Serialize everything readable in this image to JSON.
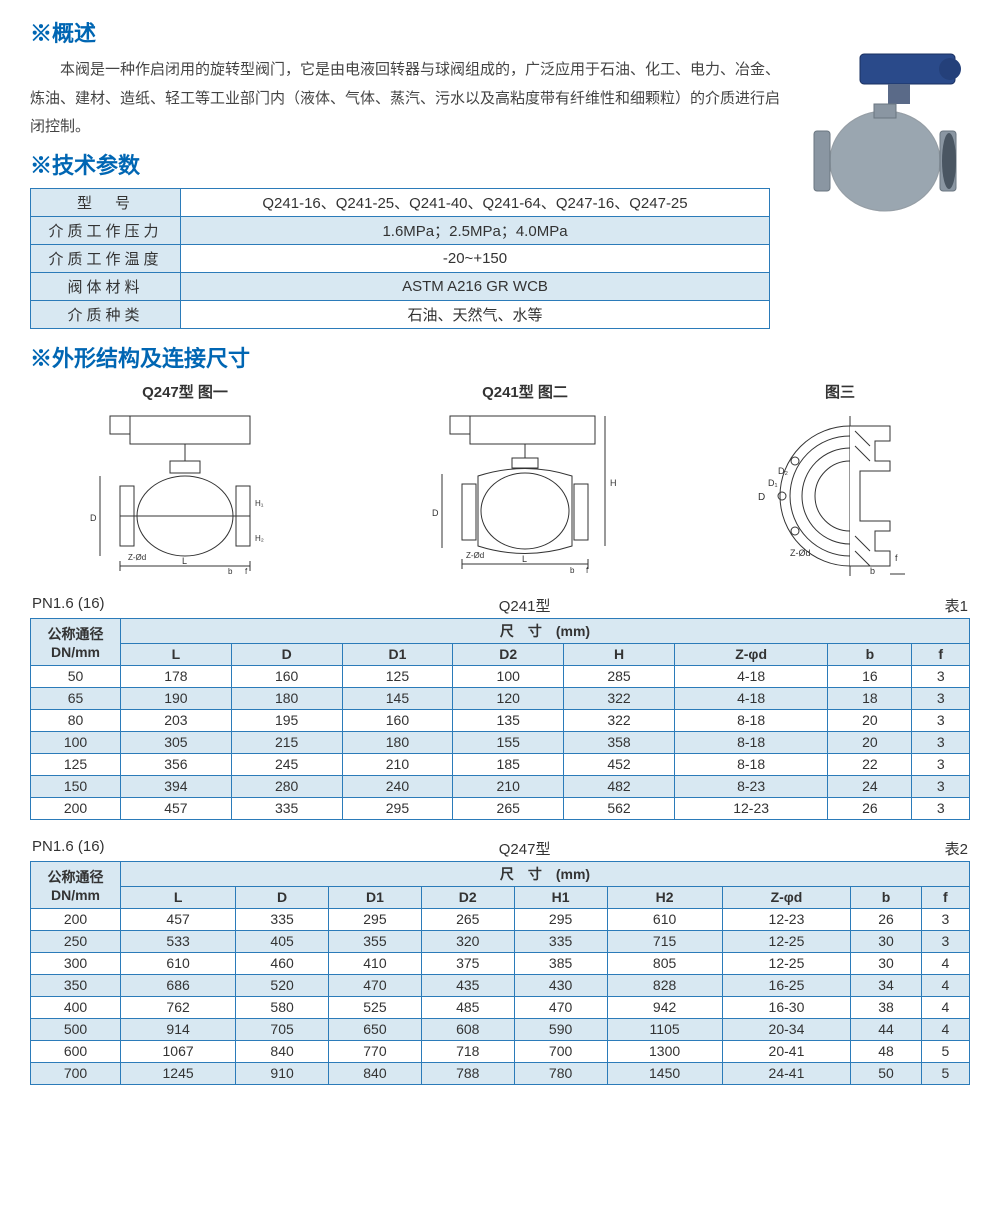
{
  "colors": {
    "heading": "#0066b3",
    "border": "#2b7bb9",
    "tint": "#d8e8f2",
    "text": "#3a3a3a"
  },
  "overview": {
    "title": "※概述",
    "body": "本阀是一种作启闭用的旋转型阀门，它是由电液回转器与球阀组成的，广泛应用于石油、化工、电力、冶金、炼油、建材、造纸、轻工等工业部门内（液体、气体、蒸汽、污水以及高粘度带有纤维性和细颗粒）的介质进行启闭控制。"
  },
  "tech": {
    "title": "※技术参数",
    "rows": [
      {
        "label": "型　号",
        "value": "Q241-16、Q241-25、Q241-40、Q241-64、Q247-16、Q247-25"
      },
      {
        "label": "介质工作压力",
        "value": "1.6MPa；2.5MPa；4.0MPa"
      },
      {
        "label": "介质工作温度",
        "value": "-20~+150"
      },
      {
        "label": "阀体材料",
        "value": "ASTM A216 GR WCB"
      },
      {
        "label": "介质种类",
        "value": "石油、天然气、水等"
      }
    ]
  },
  "dims": {
    "title": "※外形结构及连接尺寸",
    "diagrams": [
      {
        "caption": "Q247型 图一"
      },
      {
        "caption": "Q241型 图二"
      },
      {
        "caption": "图三"
      }
    ]
  },
  "table1": {
    "left": "PN1.6 (16)",
    "mid": "Q241型",
    "right": "表1",
    "dn_header": "公称通径\nDN/mm",
    "dim_header": "尺　寸　(mm)",
    "columns": [
      "L",
      "D",
      "D1",
      "D2",
      "H",
      "Z-φd",
      "b",
      "f"
    ],
    "rows": [
      [
        "50",
        "178",
        "160",
        "125",
        "100",
        "285",
        "4-18",
        "16",
        "3"
      ],
      [
        "65",
        "190",
        "180",
        "145",
        "120",
        "322",
        "4-18",
        "18",
        "3"
      ],
      [
        "80",
        "203",
        "195",
        "160",
        "135",
        "322",
        "8-18",
        "20",
        "3"
      ],
      [
        "100",
        "305",
        "215",
        "180",
        "155",
        "358",
        "8-18",
        "20",
        "3"
      ],
      [
        "125",
        "356",
        "245",
        "210",
        "185",
        "452",
        "8-18",
        "22",
        "3"
      ],
      [
        "150",
        "394",
        "280",
        "240",
        "210",
        "482",
        "8-23",
        "24",
        "3"
      ],
      [
        "200",
        "457",
        "335",
        "295",
        "265",
        "562",
        "12-23",
        "26",
        "3"
      ]
    ]
  },
  "table2": {
    "left": "PN1.6 (16)",
    "mid": "Q247型",
    "right": "表2",
    "dn_header": "公称通径\nDN/mm",
    "dim_header": "尺　寸　(mm)",
    "columns": [
      "L",
      "D",
      "D1",
      "D2",
      "H1",
      "H2",
      "Z-φd",
      "b",
      "f"
    ],
    "rows": [
      [
        "200",
        "457",
        "335",
        "295",
        "265",
        "295",
        "610",
        "12-23",
        "26",
        "3"
      ],
      [
        "250",
        "533",
        "405",
        "355",
        "320",
        "335",
        "715",
        "12-25",
        "30",
        "3"
      ],
      [
        "300",
        "610",
        "460",
        "410",
        "375",
        "385",
        "805",
        "12-25",
        "30",
        "4"
      ],
      [
        "350",
        "686",
        "520",
        "470",
        "435",
        "430",
        "828",
        "16-25",
        "34",
        "4"
      ],
      [
        "400",
        "762",
        "580",
        "525",
        "485",
        "470",
        "942",
        "16-30",
        "38",
        "4"
      ],
      [
        "500",
        "914",
        "705",
        "650",
        "608",
        "590",
        "1105",
        "20-34",
        "44",
        "4"
      ],
      [
        "600",
        "1067",
        "840",
        "770",
        "718",
        "700",
        "1300",
        "20-41",
        "48",
        "5"
      ],
      [
        "700",
        "1245",
        "910",
        "840",
        "788",
        "780",
        "1450",
        "24-41",
        "50",
        "5"
      ]
    ]
  }
}
